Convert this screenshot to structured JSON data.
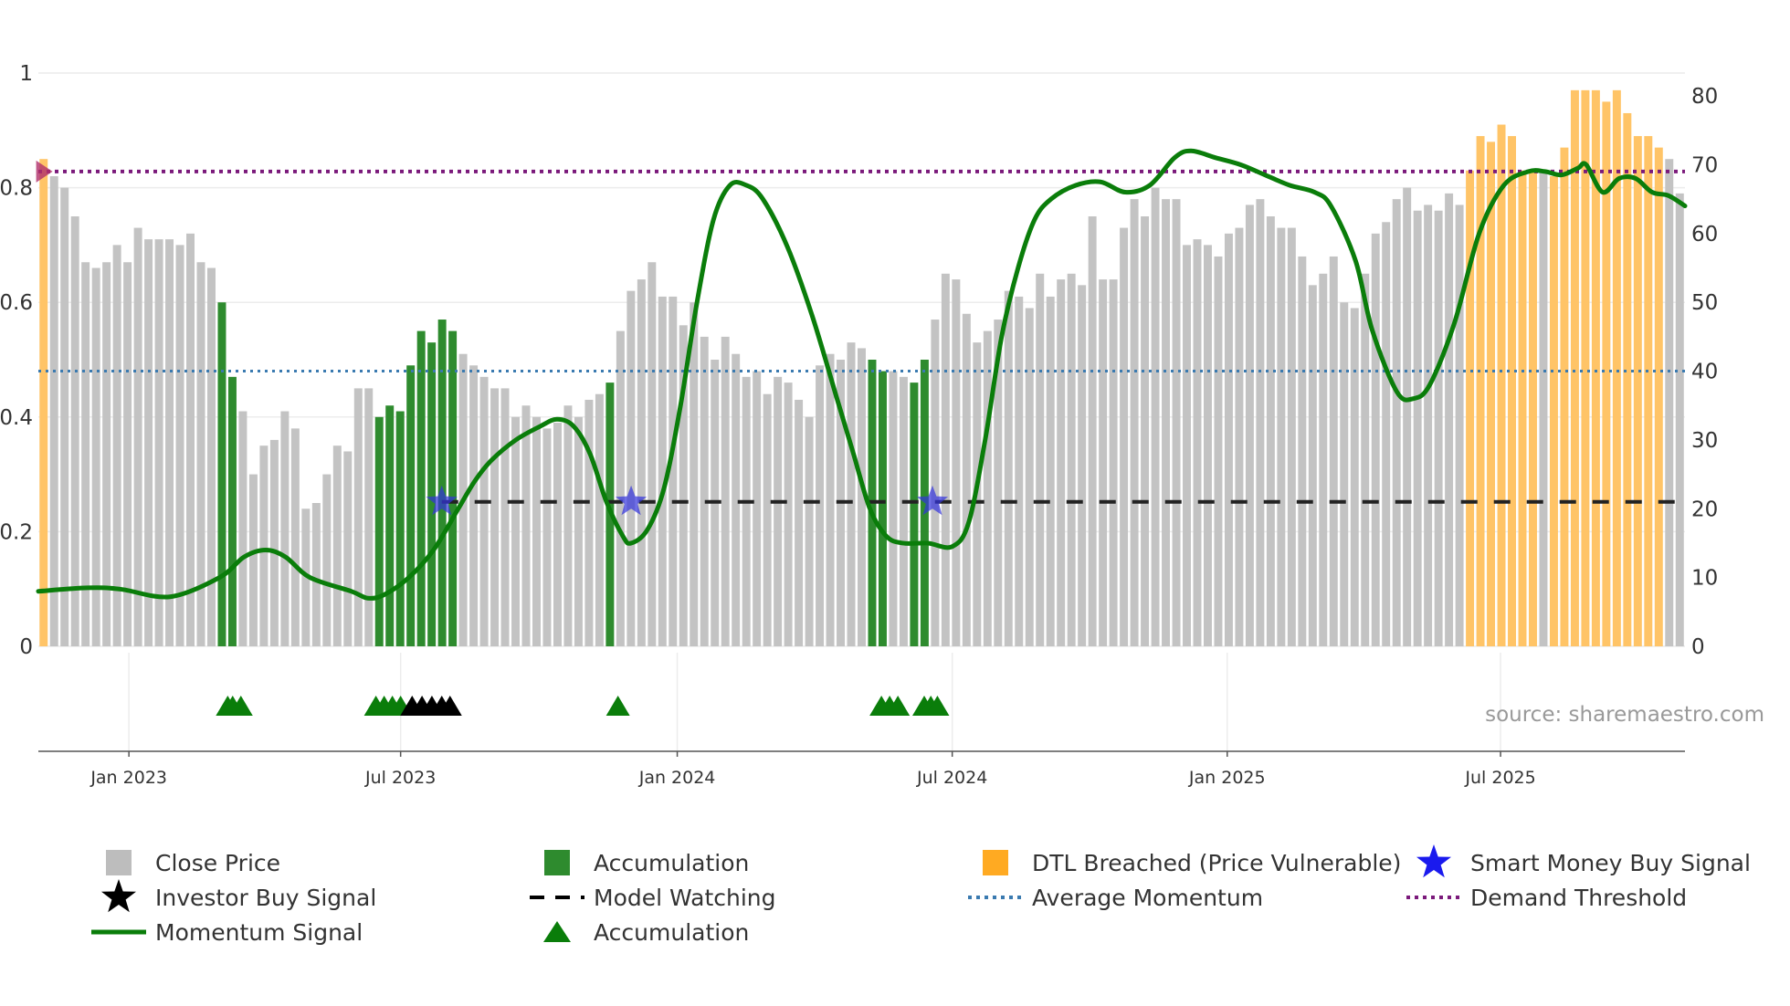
{
  "chart_data": {
    "type": "bar",
    "title": "",
    "source": "source: sharemaestro.com",
    "left_axis": {
      "ylim": [
        0,
        1
      ],
      "ticks": [
        "0",
        "0.2",
        "0.4",
        "0.6",
        "0.8",
        "1"
      ]
    },
    "right_axis": {
      "ylim": [
        0,
        80
      ],
      "ticks": [
        "0",
        "10",
        "20",
        "30",
        "40",
        "50",
        "60",
        "70",
        "80"
      ]
    },
    "x_axis": {
      "ticks": [
        "Jan 2023",
        "Jul 2023",
        "Jan 2024",
        "Jul 2024",
        "Jan 2025",
        "Jul 2025"
      ]
    },
    "colors": {
      "gray": "#c3c3c3",
      "green": "#2e8b2e",
      "orange": "#ffc467",
      "momentum": "#0a7d0a",
      "avg": "#3a7ab0",
      "demand": "#7b1a7b",
      "watch": "#222222",
      "star": "#3333dd",
      "triangle": "#0a7d0a",
      "black": "#000000"
    },
    "thresholds": {
      "average_momentum": 40,
      "demand_threshold": 69,
      "model_watching": 21
    },
    "close_price": [
      0.85,
      0.82,
      0.8,
      0.75,
      0.67,
      0.66,
      0.67,
      0.7,
      0.67,
      0.73,
      0.71,
      0.71,
      0.71,
      0.7,
      0.72,
      0.67,
      0.66,
      0.6,
      0.47,
      0.41,
      0.3,
      0.35,
      0.36,
      0.41,
      0.38,
      0.24,
      0.25,
      0.3,
      0.35,
      0.34,
      0.45,
      0.45,
      0.4,
      0.42,
      0.41,
      0.49,
      0.55,
      0.53,
      0.57,
      0.55,
      0.51,
      0.49,
      0.47,
      0.45,
      0.45,
      0.4,
      0.42,
      0.4,
      0.38,
      0.39,
      0.42,
      0.4,
      0.43,
      0.44,
      0.46,
      0.55,
      0.62,
      0.64,
      0.67,
      0.61,
      0.61,
      0.56,
      0.6,
      0.54,
      0.5,
      0.54,
      0.51,
      0.47,
      0.48,
      0.44,
      0.47,
      0.46,
      0.43,
      0.4,
      0.49,
      0.51,
      0.5,
      0.53,
      0.52,
      0.5,
      0.48,
      0.48,
      0.47,
      0.46,
      0.5,
      0.57,
      0.65,
      0.64,
      0.58,
      0.53,
      0.55,
      0.57,
      0.62,
      0.61,
      0.59,
      0.65,
      0.61,
      0.64,
      0.65,
      0.63,
      0.75,
      0.64,
      0.64,
      0.73,
      0.78,
      0.75,
      0.8,
      0.78,
      0.78,
      0.7,
      0.71,
      0.7,
      0.68,
      0.72,
      0.73,
      0.77,
      0.78,
      0.75,
      0.73,
      0.73,
      0.68,
      0.63,
      0.65,
      0.68,
      0.6,
      0.59,
      0.65,
      0.72,
      0.74,
      0.78,
      0.8,
      0.76,
      0.77,
      0.76,
      0.79,
      0.77,
      0.83,
      0.89,
      0.88,
      0.91,
      0.89,
      0.83,
      0.83,
      0.83,
      0.82,
      0.87,
      0.97,
      0.97,
      0.97,
      0.95,
      0.97,
      0.93,
      0.89,
      0.89,
      0.87,
      0.85,
      0.79
    ],
    "bar_states": [
      "O",
      "G",
      "G",
      "G",
      "G",
      "G",
      "G",
      "G",
      "G",
      "G",
      "G",
      "G",
      "G",
      "G",
      "G",
      "G",
      "G",
      "A",
      "A",
      "G",
      "G",
      "G",
      "G",
      "G",
      "G",
      "G",
      "G",
      "G",
      "G",
      "G",
      "G",
      "G",
      "A",
      "A",
      "A",
      "A",
      "A",
      "A",
      "A",
      "A",
      "G",
      "G",
      "G",
      "G",
      "G",
      "G",
      "G",
      "G",
      "G",
      "G",
      "G",
      "G",
      "G",
      "G",
      "A",
      "G",
      "G",
      "G",
      "G",
      "G",
      "G",
      "G",
      "G",
      "G",
      "G",
      "G",
      "G",
      "G",
      "G",
      "G",
      "G",
      "G",
      "G",
      "G",
      "G",
      "G",
      "G",
      "G",
      "G",
      "A",
      "A",
      "G",
      "G",
      "A",
      "A",
      "G",
      "G",
      "G",
      "G",
      "G",
      "G",
      "G",
      "G",
      "G",
      "G",
      "G",
      "G",
      "G",
      "G",
      "G",
      "G",
      "G",
      "G",
      "G",
      "G",
      "G",
      "G",
      "G",
      "G",
      "G",
      "G",
      "G",
      "G",
      "G",
      "G",
      "G",
      "G",
      "G",
      "G",
      "G",
      "G",
      "G",
      "G",
      "G",
      "G",
      "G",
      "G",
      "G",
      "G",
      "G",
      "G",
      "G",
      "G",
      "G",
      "G",
      "G",
      "O",
      "O",
      "O",
      "O",
      "O",
      "O",
      "O",
      "G",
      "O",
      "O",
      "O",
      "O",
      "O",
      "O",
      "O",
      "O",
      "O",
      "O",
      "O",
      "G"
    ],
    "momentum": [
      [
        0,
        8
      ],
      [
        0.03,
        8.5
      ],
      [
        0.05,
        8.3
      ],
      [
        0.08,
        7.2
      ],
      [
        0.11,
        10
      ],
      [
        0.125,
        13
      ],
      [
        0.138,
        14
      ],
      [
        0.15,
        13
      ],
      [
        0.165,
        10
      ],
      [
        0.19,
        8
      ],
      [
        0.2,
        7
      ],
      [
        0.21,
        7.5
      ],
      [
        0.225,
        10
      ],
      [
        0.24,
        14
      ],
      [
        0.255,
        20
      ],
      [
        0.265,
        24
      ],
      [
        0.275,
        27
      ],
      [
        0.29,
        30
      ],
      [
        0.305,
        32
      ],
      [
        0.315,
        33
      ],
      [
        0.325,
        32
      ],
      [
        0.335,
        28
      ],
      [
        0.345,
        21
      ],
      [
        0.355,
        16
      ],
      [
        0.36,
        15
      ],
      [
        0.37,
        17
      ],
      [
        0.38,
        23
      ],
      [
        0.39,
        35
      ],
      [
        0.4,
        50
      ],
      [
        0.41,
        62
      ],
      [
        0.42,
        67
      ],
      [
        0.43,
        67
      ],
      [
        0.44,
        65
      ],
      [
        0.455,
        58
      ],
      [
        0.47,
        48
      ],
      [
        0.485,
        36
      ],
      [
        0.495,
        28
      ],
      [
        0.505,
        20
      ],
      [
        0.515,
        16
      ],
      [
        0.525,
        15
      ],
      [
        0.54,
        15
      ],
      [
        0.555,
        14.5
      ],
      [
        0.565,
        18
      ],
      [
        0.575,
        30
      ],
      [
        0.585,
        45
      ],
      [
        0.595,
        55
      ],
      [
        0.605,
        62
      ],
      [
        0.615,
        65
      ],
      [
        0.63,
        67
      ],
      [
        0.645,
        67.5
      ],
      [
        0.66,
        66
      ],
      [
        0.675,
        67
      ],
      [
        0.69,
        71
      ],
      [
        0.7,
        72
      ],
      [
        0.715,
        71
      ],
      [
        0.73,
        70
      ],
      [
        0.745,
        68.5
      ],
      [
        0.76,
        67
      ],
      [
        0.775,
        66
      ],
      [
        0.785,
        64
      ],
      [
        0.8,
        56
      ],
      [
        0.81,
        46
      ],
      [
        0.825,
        37
      ],
      [
        0.835,
        36
      ],
      [
        0.845,
        38
      ],
      [
        0.86,
        47
      ],
      [
        0.875,
        60
      ],
      [
        0.89,
        67
      ],
      [
        0.905,
        69
      ],
      [
        0.915,
        69
      ],
      [
        0.925,
        68.5
      ],
      [
        0.935,
        69.5
      ],
      [
        0.94,
        70
      ],
      [
        0.95,
        66
      ],
      [
        0.96,
        68
      ],
      [
        0.97,
        68
      ],
      [
        0.98,
        66
      ],
      [
        0.99,
        65.5
      ],
      [
        1.0,
        64
      ]
    ],
    "events": {
      "accumulation_triangles": [
        0.115,
        0.118,
        0.123,
        0.205,
        0.21,
        0.215,
        0.22,
        0.352,
        0.512,
        0.517,
        0.522,
        0.538,
        0.542,
        0.546
      ],
      "investor_buy_triangles": [
        0.227,
        0.233,
        0.239,
        0.245,
        0.25
      ],
      "smart_money_stars": [
        0.245,
        0.36,
        0.543
      ],
      "demand_breach_marker": [
        0.002
      ]
    },
    "legend": [
      {
        "label": "Close Price",
        "icon": "gray-square"
      },
      {
        "label": "Accumulation",
        "icon": "green-square"
      },
      {
        "label": "DTL Breached (Price Vulnerable)",
        "icon": "orange-square"
      },
      {
        "label": "Smart Money Buy Signal",
        "icon": "blue-star"
      },
      {
        "label": "Investor Buy Signal",
        "icon": "black-star"
      },
      {
        "label": "Model Watching",
        "icon": "dashed-line"
      },
      {
        "label": "Average Momentum",
        "icon": "dotted-blue-line"
      },
      {
        "label": "Demand Threshold",
        "icon": "dotted-purple-line"
      },
      {
        "label": "Momentum Signal",
        "icon": "green-line"
      },
      {
        "label": "Accumulation",
        "icon": "green-triangle"
      }
    ]
  }
}
